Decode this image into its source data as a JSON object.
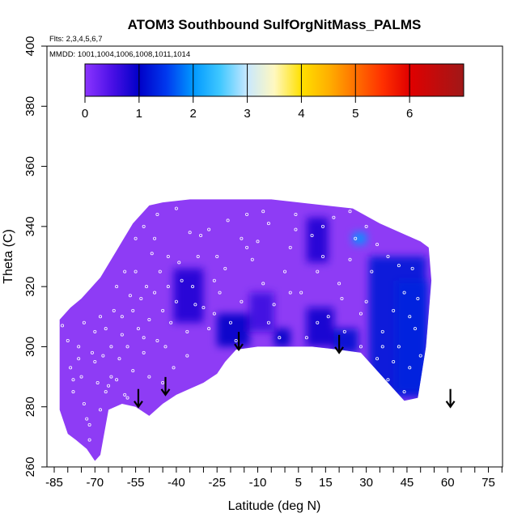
{
  "chart_data": {
    "type": "heatmap",
    "title": "ATOM3 Southbound SulfOrgNitMass_PALMS",
    "flights_label": "Flts: 2,3,4,5,6,7",
    "mmdd_label": "MMDD: 1001,1004,1006,1008,1011,1014",
    "xlabel": "Latitude (deg N)",
    "ylabel": "Theta (C)",
    "xlim": [
      -85,
      85
    ],
    "ylim": [
      260,
      400
    ],
    "x_tick_labels": [
      "-85",
      "-70",
      "-55",
      "-40",
      "-25",
      "-10",
      "5",
      "15",
      "30",
      "45",
      "60",
      "75"
    ],
    "x_tick_values": [
      -85,
      -70,
      -55,
      -40,
      -25,
      -10,
      5,
      15,
      30,
      45,
      60,
      75
    ],
    "x_minor_ticks": [
      -80,
      -75,
      -65,
      -60,
      -50,
      -45,
      -35,
      -30,
      -20,
      -15,
      -5,
      0,
      10,
      20,
      25,
      35,
      40,
      50,
      55,
      65,
      70,
      80,
      85
    ],
    "y_tick_labels": [
      "260",
      "280",
      "300",
      "320",
      "340",
      "360",
      "380",
      "400"
    ],
    "y_tick_values": [
      260,
      280,
      300,
      320,
      340,
      360,
      380,
      400
    ],
    "colorbar": {
      "range": [
        0,
        7
      ],
      "tick_labels": [
        "0",
        "1",
        "2",
        "3",
        "4",
        "5",
        "6"
      ],
      "tick_values": [
        0,
        1,
        2,
        3,
        4,
        5,
        6
      ],
      "color_stops": [
        {
          "value": 0,
          "color": "#8c35ff"
        },
        {
          "value": 0.5,
          "color": "#4a10e6"
        },
        {
          "value": 1,
          "color": "#0000c8"
        },
        {
          "value": 1.5,
          "color": "#0038ee"
        },
        {
          "value": 2,
          "color": "#0098ff"
        },
        {
          "value": 2.5,
          "color": "#40c8ff"
        },
        {
          "value": 3,
          "color": "#c8e8ff"
        },
        {
          "value": 3.5,
          "color": "#fff8c0"
        },
        {
          "value": 4,
          "color": "#ffe000"
        },
        {
          "value": 4.5,
          "color": "#ffb000"
        },
        {
          "value": 5,
          "color": "#ff7000"
        },
        {
          "value": 5.5,
          "color": "#ff3000"
        },
        {
          "value": 6,
          "color": "#e00000"
        },
        {
          "value": 7,
          "color": "#a01818"
        }
      ]
    },
    "field_colors": {
      "background_value": "#8e3cf5",
      "dark_patch": "#2810c8",
      "navy_patch": "#0a0aa8",
      "bright_patch": "#1a7cff"
    },
    "coverage_outline": [
      [
        -83,
        309
      ],
      [
        -79,
        313
      ],
      [
        -75,
        316
      ],
      [
        -72,
        319
      ],
      [
        -70,
        321
      ],
      [
        -68,
        323
      ],
      [
        -66,
        326
      ],
      [
        -64,
        329
      ],
      [
        -62,
        332
      ],
      [
        -60,
        335
      ],
      [
        -58,
        338
      ],
      [
        -56,
        341
      ],
      [
        -53,
        344
      ],
      [
        -50,
        347
      ],
      [
        -45,
        348
      ],
      [
        -35,
        349
      ],
      [
        -25,
        349
      ],
      [
        -15,
        349
      ],
      [
        -5,
        349
      ],
      [
        5,
        348
      ],
      [
        15,
        347
      ],
      [
        25,
        346
      ],
      [
        35,
        341
      ],
      [
        45,
        337
      ],
      [
        50,
        335
      ],
      [
        53,
        333
      ],
      [
        54,
        322
      ],
      [
        52,
        300
      ],
      [
        49,
        283
      ],
      [
        44,
        282
      ],
      [
        38,
        288
      ],
      [
        33,
        293
      ],
      [
        28,
        298
      ],
      [
        20,
        299
      ],
      [
        10,
        300
      ],
      [
        0,
        300
      ],
      [
        -10,
        300
      ],
      [
        -18,
        299
      ],
      [
        -22,
        295
      ],
      [
        -25,
        291
      ],
      [
        -30,
        288
      ],
      [
        -35,
        286
      ],
      [
        -40,
        284
      ],
      [
        -45,
        281
      ],
      [
        -50,
        277
      ],
      [
        -55,
        280
      ],
      [
        -60,
        281
      ],
      [
        -65,
        279
      ],
      [
        -68,
        264
      ],
      [
        -70,
        262
      ],
      [
        -73,
        266
      ],
      [
        -77,
        269
      ],
      [
        -80,
        271
      ],
      [
        -83,
        279
      ]
    ],
    "patches": [
      {
        "lat_range": [
          -41,
          -30
        ],
        "theta_range": [
          308,
          326
        ],
        "value": 0.8
      },
      {
        "lat_range": [
          -25,
          -13
        ],
        "theta_range": [
          300,
          311
        ],
        "value": 1.0
      },
      {
        "lat_range": [
          -13,
          -4
        ],
        "theta_range": [
          305,
          318
        ],
        "value": 0.6
      },
      {
        "lat_range": [
          -4,
          2
        ],
        "theta_range": [
          300,
          306
        ],
        "value": 1.0
      },
      {
        "lat_range": [
          8,
          16
        ],
        "theta_range": [
          328,
          343
        ],
        "value": 0.8
      },
      {
        "lat_range": [
          8,
          18
        ],
        "theta_range": [
          300,
          313
        ],
        "value": 0.9
      },
      {
        "lat_range": [
          18,
          27
        ],
        "theta_range": [
          298,
          306
        ],
        "value": 1.1
      },
      {
        "lat_range": [
          31,
          52
        ],
        "theta_range": [
          283,
          330
        ],
        "value": 1.2
      },
      {
        "lat_range": [
          41,
          53
        ],
        "theta_range": [
          285,
          322
        ],
        "value": 1.3
      },
      {
        "lat_range": [
          25,
          30
        ],
        "theta_range": [
          334,
          338
        ],
        "value": 2.0
      }
    ],
    "arrows_lat": [
      -54,
      -44,
      -17,
      20,
      61
    ],
    "arrows_theta_tip": [
      280,
      284,
      299,
      298,
      280
    ],
    "sample_points": [
      [
        -80,
        302
      ],
      [
        -79,
        293
      ],
      [
        -78,
        285
      ],
      [
        -76,
        296
      ],
      [
        -75,
        290
      ],
      [
        -74,
        281
      ],
      [
        -73,
        276
      ],
      [
        -72,
        269
      ],
      [
        -71,
        298
      ],
      [
        -70,
        305
      ],
      [
        -69,
        288
      ],
      [
        -68,
        279
      ],
      [
        -67,
        297
      ],
      [
        -66,
        306
      ],
      [
        -65,
        287
      ],
      [
        -64,
        300
      ],
      [
        -63,
        312
      ],
      [
        -62,
        289
      ],
      [
        -61,
        296
      ],
      [
        -60,
        310
      ],
      [
        -59,
        284
      ],
      [
        -58,
        300
      ],
      [
        -57,
        317
      ],
      [
        -56,
        292
      ],
      [
        -55,
        325
      ],
      [
        -54,
        306
      ],
      [
        -53,
        316
      ],
      [
        -52,
        298
      ],
      [
        -51,
        320
      ],
      [
        -50,
        309
      ],
      [
        -49,
        331
      ],
      [
        -48,
        318
      ],
      [
        -47,
        302
      ],
      [
        -46,
        325
      ],
      [
        -45,
        312
      ],
      [
        -44,
        300
      ],
      [
        -43,
        320
      ],
      [
        -42,
        308
      ],
      [
        -40,
        315
      ],
      [
        -38,
        322
      ],
      [
        -36,
        305
      ],
      [
        -34,
        320
      ],
      [
        -32,
        330
      ],
      [
        -30,
        313
      ],
      [
        -28,
        306
      ],
      [
        -26,
        322
      ],
      [
        -24,
        318
      ],
      [
        -22,
        326
      ],
      [
        -20,
        308
      ],
      [
        -18,
        302
      ],
      [
        -16,
        336
      ],
      [
        -14,
        344
      ],
      [
        -12,
        329
      ],
      [
        -10,
        335
      ],
      [
        -8,
        321
      ],
      [
        -6,
        341
      ],
      [
        -4,
        314
      ],
      [
        -2,
        303
      ],
      [
        0,
        325
      ],
      [
        2,
        333
      ],
      [
        4,
        344
      ],
      [
        6,
        318
      ],
      [
        8,
        303
      ],
      [
        10,
        337
      ],
      [
        12,
        325
      ],
      [
        14,
        330
      ],
      [
        16,
        310
      ],
      [
        18,
        343
      ],
      [
        20,
        321
      ],
      [
        22,
        305
      ],
      [
        24,
        329
      ],
      [
        26,
        336
      ],
      [
        28,
        300
      ],
      [
        30,
        315
      ],
      [
        32,
        325
      ],
      [
        34,
        296
      ],
      [
        36,
        305
      ],
      [
        38,
        289
      ],
      [
        40,
        312
      ],
      [
        42,
        300
      ],
      [
        44,
        318
      ],
      [
        46,
        293
      ],
      [
        48,
        306
      ],
      [
        50,
        297
      ],
      [
        -55,
        336
      ],
      [
        -52,
        340
      ],
      [
        -47,
        344
      ],
      [
        -40,
        346
      ],
      [
        -35,
        338
      ],
      [
        -28,
        339
      ],
      [
        -21,
        342
      ],
      [
        -62,
        320
      ],
      [
        -68,
        310
      ],
      [
        -74,
        308
      ],
      [
        -50,
        290
      ],
      [
        -45,
        288
      ],
      [
        -58,
        283
      ],
      [
        -64,
        290
      ],
      [
        -70,
        295
      ],
      [
        -76,
        300
      ],
      [
        -82,
        307
      ],
      [
        -78,
        289
      ],
      [
        38,
        330
      ],
      [
        42,
        327
      ],
      [
        47,
        326
      ],
      [
        34,
        334
      ],
      [
        30,
        340
      ],
      [
        24,
        345
      ],
      [
        14,
        340
      ],
      [
        4,
        339
      ],
      [
        -8,
        345
      ],
      [
        -14,
        333
      ],
      [
        -25,
        330
      ],
      [
        -33,
        314
      ],
      [
        -43,
        330
      ],
      [
        -48,
        336
      ],
      [
        -56,
        312
      ],
      [
        -60,
        304
      ],
      [
        -66,
        285
      ],
      [
        -72,
        274
      ],
      [
        46,
        310
      ],
      [
        49,
        316
      ],
      [
        44,
        285
      ],
      [
        40,
        295
      ],
      [
        36,
        300
      ],
      [
        28,
        311
      ],
      [
        21,
        316
      ],
      [
        12,
        308
      ],
      [
        2,
        318
      ],
      [
        -6,
        308
      ],
      [
        -16,
        315
      ],
      [
        -26,
        311
      ],
      [
        -36,
        297
      ],
      [
        -41,
        293
      ],
      [
        -39,
        328
      ],
      [
        -31,
        337
      ],
      [
        -52,
        303
      ],
      [
        -59,
        325
      ]
    ]
  }
}
